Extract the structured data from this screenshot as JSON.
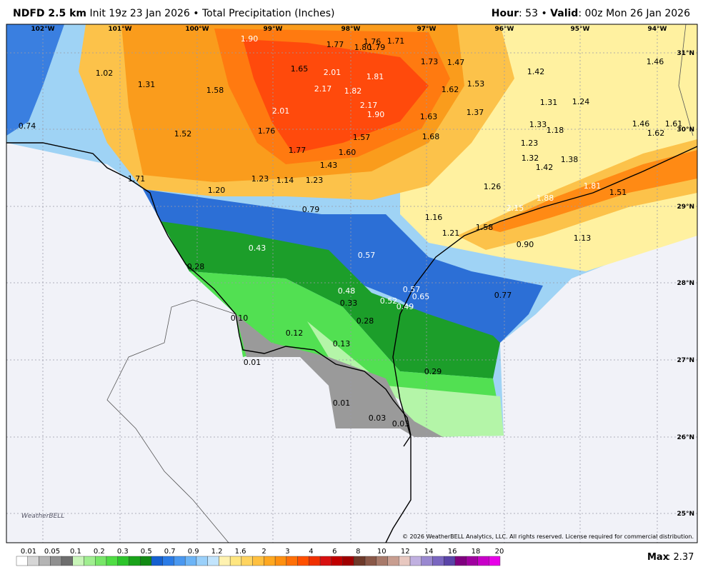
{
  "header": {
    "product": "NDFD 2.5 km",
    "init": "Init 19z 23 Jan 2026 • Total Precipitation (Inches)",
    "hour_label": "Hour",
    "hour_value": ": 53 •",
    "valid_label": "Valid",
    "valid_value": ": 00z Mon 26 Jan 2026"
  },
  "map": {
    "longitudes": [
      "102°W",
      "101°W",
      "100°W",
      "99°W",
      "98°W",
      "97°W",
      "96°W",
      "95°W",
      "94°W"
    ],
    "latitudes": [
      "31°N",
      "30°N",
      "29°N",
      "28°N",
      "27°N",
      "26°N",
      "25°N"
    ],
    "values": [
      "1.90",
      "1.77",
      "1.76",
      "1.80",
      "1.79",
      "1.71",
      "1.73",
      "1.47",
      "1.02",
      "1.65",
      "2.01",
      "1.81",
      "1.42",
      "1.46",
      "1.31",
      "1.58",
      "2.17",
      "1.82",
      "1.62",
      "1.53",
      "1.31",
      "1.24",
      "2.17",
      "2.01",
      "1.90",
      "1.37",
      "1.63",
      "0.74",
      "1.52",
      "1.76",
      "1.57",
      "1.68",
      "1.33",
      "1.18",
      "1.46",
      "1.62",
      "1.61",
      "1.23",
      "1.77",
      "1.60",
      "1.32",
      "1.38",
      "1.42",
      "1.43",
      "1.71",
      "1.23",
      "1.14",
      "1.23",
      "1.26",
      "1.81",
      "1.51",
      "1.20",
      "1.88",
      "2.15",
      "0.79",
      "1.16",
      "1.58",
      "1.21",
      "1.13",
      "0.90",
      "0.43",
      "0.57",
      "0.28",
      "0.57",
      "0.48",
      "0.65",
      "0.52",
      "0.33",
      "0.49",
      "0.77",
      "0.10",
      "0.28",
      "0.12",
      "0.13",
      "0.01",
      "0.29",
      "0.01",
      "0.03",
      "0.03"
    ],
    "copyright": "© 2026 WeatherBELL Analytics, LLC. All rights reserved. License required for commercial distribution.",
    "logo": "WeatherBELL"
  },
  "legend": {
    "labels": [
      "0.01",
      "0.05",
      "0.1",
      "0.2",
      "0.3",
      "0.5",
      "0.7",
      "0.9",
      "1.2",
      "1.6",
      "2",
      "3",
      "4",
      "6",
      "8",
      "10",
      "12",
      "14",
      "16",
      "18",
      "20"
    ],
    "colors": [
      "#ffffff",
      "#d6d6d6",
      "#b4b4b4",
      "#909090",
      "#6e6e6e",
      "#c8f5b8",
      "#a0ee90",
      "#78e668",
      "#50dd44",
      "#2cc42a",
      "#1aa31a",
      "#128a14",
      "#1560d0",
      "#2a7be6",
      "#4a98f0",
      "#6cb4f6",
      "#9ad0fa",
      "#c2e4fc",
      "#fff2b0",
      "#ffe680",
      "#ffd460",
      "#ffc040",
      "#ffa820",
      "#ff9010",
      "#ff7008",
      "#ff5000",
      "#f03000",
      "#d81010",
      "#c00000",
      "#a00000",
      "#6e3a2a",
      "#8a5848",
      "#a87a6a",
      "#c89e90",
      "#e8c8c0",
      "#c0b0e0",
      "#9a88d0",
      "#7a66c0",
      "#5a44a8",
      "#800080",
      "#a000a0",
      "#c800c8",
      "#e800e8"
    ],
    "max_label": "Max",
    "max_value": ": 2.37"
  }
}
